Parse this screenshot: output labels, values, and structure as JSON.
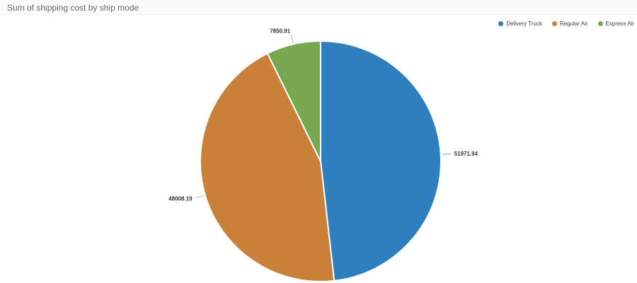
{
  "header": {
    "title": "Sum of shipping cost by ship mode"
  },
  "legend": {
    "position": "top-right",
    "items": [
      {
        "label": "Delivery Truck",
        "color": "#2e7fbf"
      },
      {
        "label": "Regular Air",
        "color": "#c9813a"
      },
      {
        "label": "Express Air",
        "color": "#77a74e"
      }
    ]
  },
  "chart_data": {
    "type": "pie",
    "title": "Sum of shipping cost by ship mode",
    "categories": [
      "Delivery Truck",
      "Regular Air",
      "Express Air"
    ],
    "values": [
      51971.94,
      48008.19,
      7850.91
    ],
    "value_labels": [
      "51971.94",
      "48008.19",
      "7850.91"
    ],
    "colors": [
      "#2e7fbf",
      "#c9813a",
      "#77a74e"
    ],
    "start_angle_deg": 0,
    "direction": "clockwise",
    "legend_position": "top-right",
    "slice_border_color": "#ffffff",
    "label_color": "#333333"
  }
}
